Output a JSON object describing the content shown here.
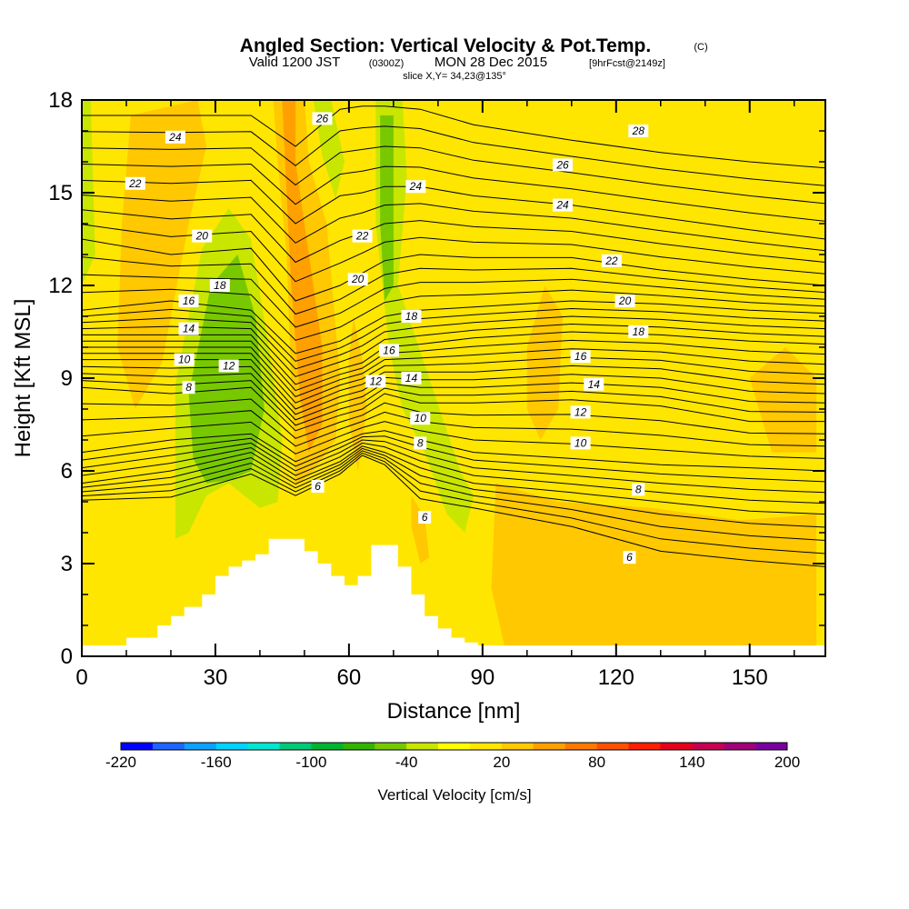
{
  "chart_data": {
    "type": "heatmap",
    "title": {
      "main": "Angled Section: Vertical Velocity & Pot.Temp.",
      "unit": "(C)"
    },
    "subtitle": {
      "valid": "Valid 1200 JST",
      "zulu": "(0300Z)",
      "date": "MON 28 Dec 2015",
      "forecast": "[9hrFcst@2149z]",
      "slice": "slice X,Y= 34,23@135°"
    },
    "xlabel": "Distance [nm]",
    "ylabel": "Height [Kft MSL]",
    "xlim": [
      0,
      167
    ],
    "ylim": [
      0,
      18
    ],
    "x_ticks": [
      0,
      30,
      60,
      90,
      120,
      150
    ],
    "y_ticks": [
      0,
      3,
      6,
      9,
      12,
      15,
      18
    ],
    "colorbar": {
      "title": "Vertical Velocity [cm/s]",
      "levels": [
        -220,
        -200,
        -180,
        -160,
        -140,
        -120,
        -100,
        -80,
        -60,
        -40,
        -20,
        0,
        20,
        40,
        60,
        80,
        100,
        120,
        140,
        160,
        180,
        200
      ],
      "tick_labels": [
        "-220",
        "-160",
        "-100",
        "-40",
        "20",
        "80",
        "140",
        "200"
      ],
      "colors": [
        "#0000ff",
        "#1e64ff",
        "#0ca0ff",
        "#00d2ff",
        "#00e6d2",
        "#00c878",
        "#00b432",
        "#32b400",
        "#78c800",
        "#c8e600",
        "#ffff00",
        "#ffe600",
        "#ffc800",
        "#ffa000",
        "#ff7800",
        "#ff5000",
        "#ff1e00",
        "#e6001e",
        "#c80050",
        "#a00078",
        "#7800a0"
      ]
    },
    "background_value": 5,
    "velocity_regions": [
      {
        "value": -30,
        "points": [
          [
            21,
            8.8
          ],
          [
            27,
            13.2
          ],
          [
            33,
            14.5
          ],
          [
            38,
            13.5
          ],
          [
            42,
            10
          ],
          [
            45,
            7
          ],
          [
            44,
            5
          ],
          [
            40,
            4.8
          ],
          [
            33,
            5.6
          ],
          [
            28,
            5.2
          ],
          [
            24,
            4
          ],
          [
            21,
            3.8
          ]
        ]
      },
      {
        "value": -55,
        "points": [
          [
            24,
            8.5
          ],
          [
            29,
            12
          ],
          [
            35,
            13
          ],
          [
            39,
            11
          ],
          [
            41,
            8
          ],
          [
            38,
            6
          ],
          [
            33,
            5.7
          ],
          [
            28,
            5.6
          ],
          [
            25,
            6.4
          ]
        ]
      },
      {
        "value": -30,
        "points": [
          [
            52,
            18
          ],
          [
            56,
            18
          ],
          [
            59,
            16
          ],
          [
            57,
            14.8
          ],
          [
            54,
            16.2
          ]
        ]
      },
      {
        "value": -30,
        "points": [
          [
            66,
            18
          ],
          [
            72,
            18
          ],
          [
            73,
            15.5
          ],
          [
            71,
            12
          ],
          [
            78,
            9
          ],
          [
            85,
            6
          ],
          [
            88,
            5.2
          ],
          [
            86,
            4
          ],
          [
            82,
            4.6
          ],
          [
            77,
            6.6
          ],
          [
            72,
            8
          ],
          [
            69,
            10
          ],
          [
            66,
            14
          ]
        ]
      },
      {
        "value": -55,
        "points": [
          [
            67,
            17.5
          ],
          [
            70,
            17.5
          ],
          [
            70,
            12
          ],
          [
            68,
            11.5
          ],
          [
            67,
            14
          ]
        ]
      },
      {
        "value": -30,
        "points": [
          [
            0,
            18
          ],
          [
            2,
            18
          ],
          [
            3,
            13
          ],
          [
            0,
            12
          ]
        ]
      },
      {
        "value": 25,
        "points": [
          [
            11,
            17.5
          ],
          [
            26,
            18
          ],
          [
            28,
            16.5
          ],
          [
            24,
            14
          ],
          [
            18,
            9.5
          ],
          [
            12,
            8
          ],
          [
            8,
            10
          ],
          [
            9,
            14
          ]
        ]
      },
      {
        "value": 25,
        "points": [
          [
            43,
            18
          ],
          [
            50,
            18
          ],
          [
            51,
            16
          ],
          [
            55,
            14
          ],
          [
            58,
            9
          ],
          [
            57,
            7
          ],
          [
            52,
            6
          ],
          [
            48,
            5.5
          ],
          [
            47,
            9
          ],
          [
            46,
            13
          ],
          [
            44,
            16
          ]
        ]
      },
      {
        "value": 45,
        "points": [
          [
            45,
            18
          ],
          [
            48,
            18
          ],
          [
            48,
            16
          ],
          [
            51,
            13
          ],
          [
            54,
            10
          ],
          [
            54,
            7.5
          ],
          [
            51,
            6.6
          ],
          [
            49,
            8.4
          ],
          [
            47,
            12
          ],
          [
            46,
            15
          ]
        ]
      },
      {
        "value": 25,
        "points": [
          [
            61,
            11
          ],
          [
            63,
            9.6
          ],
          [
            64,
            8
          ],
          [
            62,
            6
          ],
          [
            60,
            7.6
          ],
          [
            60,
            9.6
          ]
        ]
      },
      {
        "value": 25,
        "points": [
          [
            74,
            5.2
          ],
          [
            77,
            4.5
          ],
          [
            78,
            3.2
          ],
          [
            76,
            3
          ],
          [
            74,
            4.2
          ]
        ]
      },
      {
        "value": 25,
        "points": [
          [
            100,
            10
          ],
          [
            104,
            12
          ],
          [
            108,
            11
          ],
          [
            107,
            8
          ],
          [
            103,
            7
          ],
          [
            100,
            8
          ]
        ]
      },
      {
        "value": 25,
        "points": [
          [
            93,
            5.6
          ],
          [
            107,
            5
          ],
          [
            128,
            4.8
          ],
          [
            148,
            4.4
          ],
          [
            165,
            4.6
          ],
          [
            165,
            0.3
          ],
          [
            95,
            0.3
          ],
          [
            92,
            2.2
          ]
        ]
      },
      {
        "value": 25,
        "points": [
          [
            150,
            9
          ],
          [
            158,
            10
          ],
          [
            165,
            9
          ],
          [
            165,
            6.6
          ],
          [
            155,
            6.6
          ]
        ]
      }
    ],
    "terrain": {
      "x": [
        0,
        10,
        10,
        17,
        17,
        20,
        20,
        23,
        23,
        27,
        27,
        30,
        30,
        33,
        33,
        36,
        36,
        39,
        39,
        42,
        42,
        50,
        50,
        53,
        53,
        56,
        56,
        59,
        59,
        62,
        62,
        65,
        65,
        71,
        71,
        74,
        74,
        77,
        77,
        80,
        80,
        83,
        83,
        86,
        86,
        89,
        89,
        167
      ],
      "height_kft": [
        0.35,
        0.35,
        0.6,
        0.6,
        1.0,
        1.0,
        1.3,
        1.3,
        1.6,
        1.6,
        2.0,
        2.0,
        2.6,
        2.6,
        2.9,
        2.9,
        3.1,
        3.1,
        3.3,
        3.3,
        3.8,
        3.8,
        3.4,
        3.4,
        3.0,
        3.0,
        2.6,
        2.6,
        2.3,
        2.3,
        2.6,
        2.6,
        3.6,
        3.6,
        2.9,
        2.9,
        2.0,
        2.0,
        1.3,
        1.3,
        0.9,
        0.9,
        0.6,
        0.6,
        0.45,
        0.45,
        0.35,
        0.35
      ]
    },
    "theta_isotherms": {
      "spacing_c": 1,
      "valley_x": [
        0,
        20,
        38,
        48,
        58,
        63,
        68,
        76,
        88,
        110,
        130,
        150,
        167
      ],
      "base_heights_kft": [
        [
          5.05,
          5.15,
          5.9,
          5.2,
          5.9,
          6.5,
          6.2,
          5.1,
          4.8,
          4.2,
          3.4,
          3.1,
          2.9
        ],
        [
          5.6,
          6.0,
          6.6,
          5.7,
          6.3,
          6.8,
          6.6,
          6.1,
          5.6,
          5.3,
          5.0,
          4.7,
          4.6
        ],
        [
          6.6,
          7.0,
          7.2,
          6.3,
          6.9,
          7.2,
          7.3,
          7.0,
          6.6,
          6.4,
          6.2,
          6.1,
          6.0
        ],
        [
          8.7,
          8.5,
          8.7,
          7.3,
          7.8,
          8.0,
          8.5,
          8.2,
          8.2,
          8.3,
          8.1,
          7.6,
          7.6
        ],
        [
          9.6,
          9.6,
          9.6,
          8.0,
          8.6,
          8.8,
          9.2,
          9.2,
          9.2,
          9.4,
          9.3,
          8.9,
          8.8
        ],
        [
          10.4,
          10.4,
          10.4,
          8.8,
          9.3,
          9.5,
          10.0,
          10.1,
          10.3,
          10.5,
          10.4,
          10.2,
          10.1
        ],
        [
          11.2,
          11.5,
          11.2,
          9.8,
          10.2,
          10.6,
          11.0,
          11.2,
          11.3,
          11.5,
          11.4,
          11.2,
          11.1
        ],
        [
          13.5,
          13.0,
          13.2,
          11.5,
          12.0,
          12.4,
          12.8,
          13.0,
          12.9,
          12.9,
          12.5,
          12.2,
          12.0
        ],
        [
          15.4,
          15.3,
          15.4,
          14.0,
          14.9,
          15.0,
          15.2,
          15.2,
          14.9,
          14.6,
          14.2,
          13.8,
          13.5
        ],
        [
          17.5,
          17.5,
          17.5,
          16.5,
          17.7,
          17.8,
          17.8,
          17.7,
          17.2,
          16.7,
          16.3,
          16.0,
          15.8
        ]
      ],
      "labels": [
        {
          "text": "6",
          "x": 53,
          "y": 5.5
        },
        {
          "text": "6",
          "x": 77,
          "y": 4.5
        },
        {
          "text": "6",
          "x": 123,
          "y": 3.2
        },
        {
          "text": "8",
          "x": 24,
          "y": 8.7
        },
        {
          "text": "8",
          "x": 76,
          "y": 6.9
        },
        {
          "text": "8",
          "x": 125,
          "y": 5.4
        },
        {
          "text": "10",
          "x": 23,
          "y": 9.6
        },
        {
          "text": "10",
          "x": 76,
          "y": 7.7
        },
        {
          "text": "10",
          "x": 112,
          "y": 6.9
        },
        {
          "text": "12",
          "x": 33,
          "y": 9.4
        },
        {
          "text": "12",
          "x": 66,
          "y": 8.9
        },
        {
          "text": "12",
          "x": 112,
          "y": 7.9
        },
        {
          "text": "14",
          "x": 24,
          "y": 10.6
        },
        {
          "text": "14",
          "x": 74,
          "y": 9.0
        },
        {
          "text": "14",
          "x": 115,
          "y": 8.8
        },
        {
          "text": "16",
          "x": 24,
          "y": 11.5
        },
        {
          "text": "16",
          "x": 69,
          "y": 9.9
        },
        {
          "text": "16",
          "x": 112,
          "y": 9.7
        },
        {
          "text": "18",
          "x": 31,
          "y": 12.0
        },
        {
          "text": "18",
          "x": 74,
          "y": 11.0
        },
        {
          "text": "18",
          "x": 125,
          "y": 10.5
        },
        {
          "text": "20",
          "x": 27,
          "y": 13.6
        },
        {
          "text": "20",
          "x": 62,
          "y": 12.2
        },
        {
          "text": "20",
          "x": 122,
          "y": 11.5
        },
        {
          "text": "22",
          "x": 12,
          "y": 15.3
        },
        {
          "text": "22",
          "x": 63,
          "y": 13.6
        },
        {
          "text": "22",
          "x": 119,
          "y": 12.8
        },
        {
          "text": "24",
          "x": 21,
          "y": 16.8
        },
        {
          "text": "24",
          "x": 75,
          "y": 15.2
        },
        {
          "text": "24",
          "x": 108,
          "y": 14.6
        },
        {
          "text": "26",
          "x": 54,
          "y": 17.4
        },
        {
          "text": "26",
          "x": 108,
          "y": 15.9
        },
        {
          "text": "28",
          "x": 125,
          "y": 17.0
        }
      ]
    }
  }
}
